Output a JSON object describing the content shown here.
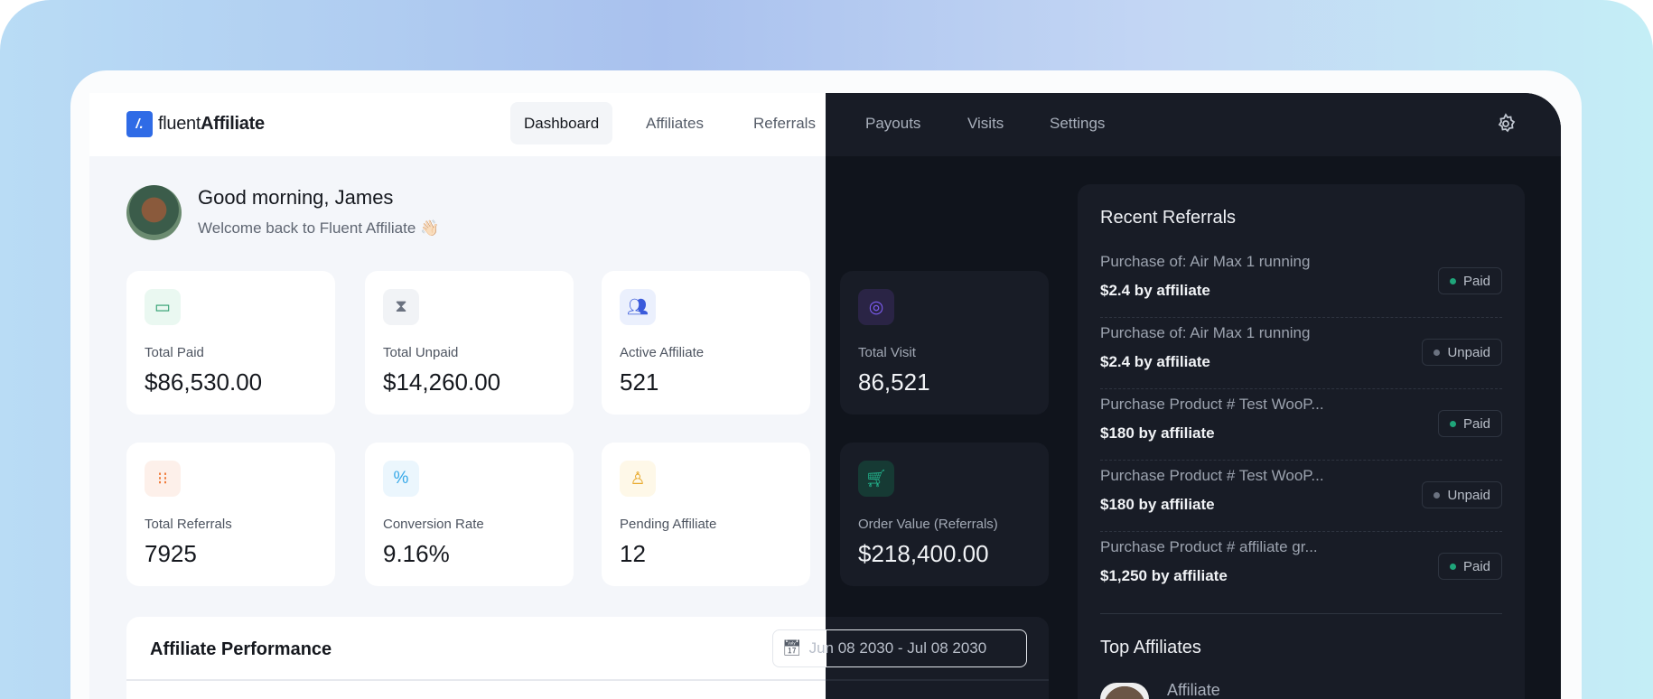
{
  "brand": {
    "mark": "/.",
    "name_light": "fluent",
    "name_bold": "Affiliate"
  },
  "nav": [
    {
      "label": "Dashboard",
      "active": true
    },
    {
      "label": "Affiliates"
    },
    {
      "label": "Referrals"
    },
    {
      "label": "Payouts"
    },
    {
      "label": "Visits"
    },
    {
      "label": "Settings"
    }
  ],
  "header": {
    "settings_icon": "gear-icon"
  },
  "greeting": {
    "title": "Good morning, James",
    "subtitle": "Welcome back to Fluent Affiliate 👋🏻"
  },
  "stats": [
    {
      "label": "Total Paid",
      "value": "$86,530.00",
      "icon": "wallet-icon",
      "color": "#2e9e6e"
    },
    {
      "label": "Total Unpaid",
      "value": "$14,260.00",
      "icon": "hourglass-icon",
      "color": "#6b7280"
    },
    {
      "label": "Active Affiliate",
      "value": "521",
      "icon": "users-icon",
      "color": "#3b5bdb"
    },
    {
      "label": "Total Visit",
      "value": "86,521",
      "icon": "eye-icon",
      "color": "#7c5cf0"
    },
    {
      "label": "Total Referrals",
      "value": "7925",
      "icon": "referral-icon",
      "color": "#f07a3a"
    },
    {
      "label": "Conversion Rate",
      "value": "9.16%",
      "icon": "percent-icon",
      "color": "#38a9e8"
    },
    {
      "label": "Pending Affiliate",
      "value": "12",
      "icon": "user-pending-icon",
      "color": "#e8a92c"
    },
    {
      "label": "Order Value (Referrals)",
      "value": "$218,400.00",
      "icon": "cart-icon",
      "color": "#22b08a"
    }
  ],
  "performance": {
    "title": "Affiliate Performance",
    "date_range": "Jun 08 2030 - Jul 08 2030"
  },
  "recent_referrals": {
    "title": "Recent Referrals",
    "items": [
      {
        "title": "Purchase of: Air Max 1 running",
        "amount": "$2.4 by affiliate",
        "status": "Paid"
      },
      {
        "title": "Purchase of: Air Max 1 running",
        "amount": "$2.4 by affiliate",
        "status": "Unpaid"
      },
      {
        "title": "Purchase Product # Test WooP...",
        "amount": "$180 by affiliate",
        "status": "Paid"
      },
      {
        "title": "Purchase Product # Test WooP...",
        "amount": "$180 by affiliate",
        "status": "Unpaid"
      },
      {
        "title": "Purchase Product # affiliate gr...",
        "amount": "$1,250 by affiliate",
        "status": "Paid"
      }
    ]
  },
  "top_affiliates": {
    "title": "Top Affiliates",
    "items": [
      {
        "name": "Affiliate"
      }
    ]
  },
  "colors": {
    "paid": "#1fa57a",
    "unpaid": "#6b7280",
    "brand": "#2f6be6"
  }
}
